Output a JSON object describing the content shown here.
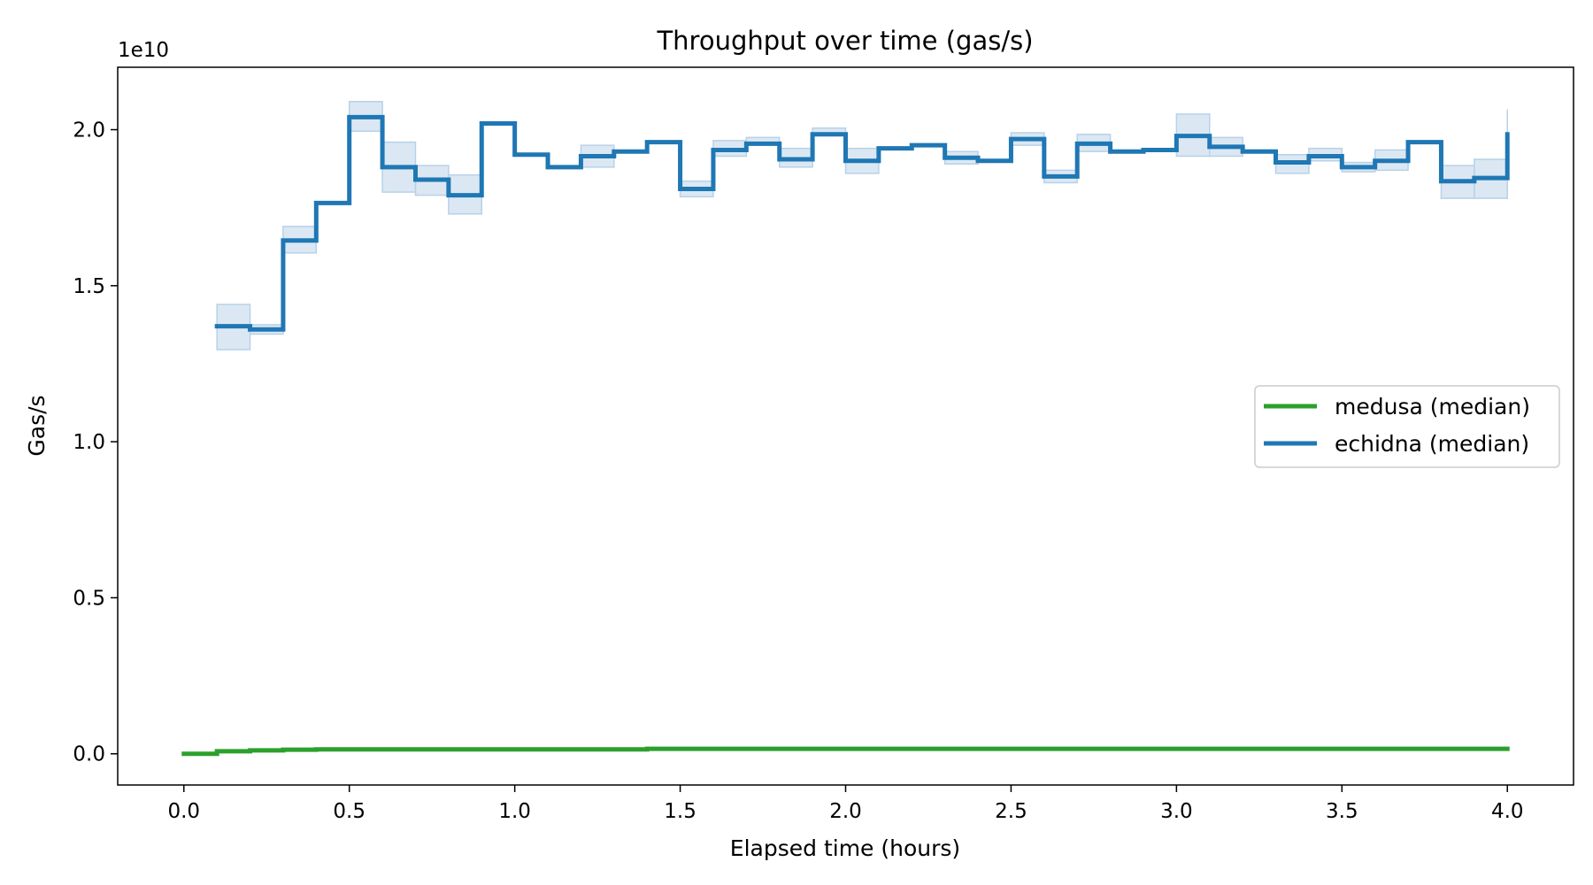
{
  "chart_data": {
    "type": "line",
    "title": "Throughput over time (gas/s)",
    "xlabel": "Elapsed time (hours)",
    "ylabel": "Gas/s",
    "y_offset_label": "1e10",
    "y_scale": 10000000000,
    "xlim": [
      -0.2,
      4.2
    ],
    "ylim": [
      -0.1,
      2.2
    ],
    "x_ticks": [
      0.0,
      0.5,
      1.0,
      1.5,
      2.0,
      2.5,
      3.0,
      3.5,
      4.0
    ],
    "x_tick_labels": [
      "0.0",
      "0.5",
      "1.0",
      "1.5",
      "2.0",
      "2.5",
      "3.0",
      "3.5",
      "4.0"
    ],
    "y_ticks": [
      0.0,
      0.5,
      1.0,
      1.5,
      2.0
    ],
    "y_tick_labels": [
      "0.0",
      "0.5",
      "1.0",
      "1.5",
      "2.0"
    ],
    "grid": false,
    "legend_position": "center-right",
    "step": "post",
    "series": [
      {
        "name": "medusa (median)",
        "color": "#2ca02c",
        "x": [
          0.0,
          0.1,
          0.2,
          0.3,
          0.4,
          1.4,
          4.0
        ],
        "y": [
          0.0,
          0.008,
          0.011,
          0.013,
          0.014,
          0.016,
          0.016
        ]
      },
      {
        "name": "echidna (median)",
        "color": "#1f77b4",
        "band_color": "#b8d1e8",
        "x": [
          0.1,
          0.2,
          0.3,
          0.4,
          0.5,
          0.6,
          0.7,
          0.8,
          0.9,
          1.0,
          1.1,
          1.2,
          1.3,
          1.4,
          1.5,
          1.6,
          1.7,
          1.8,
          1.9,
          2.0,
          2.1,
          2.2,
          2.3,
          2.4,
          2.5,
          2.6,
          2.7,
          2.8,
          2.9,
          3.0,
          3.1,
          3.2,
          3.3,
          3.4,
          3.5,
          3.6,
          3.7,
          3.8,
          3.9,
          4.0
        ],
        "y": [
          1.37,
          1.36,
          1.645,
          1.765,
          2.04,
          1.88,
          1.84,
          1.79,
          2.02,
          1.92,
          1.88,
          1.915,
          1.93,
          1.96,
          1.81,
          1.935,
          1.955,
          1.905,
          1.985,
          1.9,
          1.94,
          1.95,
          1.91,
          1.9,
          1.97,
          1.85,
          1.955,
          1.93,
          1.935,
          1.98,
          1.945,
          1.93,
          1.895,
          1.915,
          1.88,
          1.9,
          1.96,
          1.835,
          1.845,
          1.985
        ],
        "y_low": [
          1.295,
          1.345,
          1.605,
          1.765,
          1.995,
          1.8,
          1.79,
          1.73,
          2.02,
          1.92,
          1.88,
          1.88,
          1.93,
          1.96,
          1.785,
          1.915,
          1.955,
          1.88,
          1.985,
          1.86,
          1.94,
          1.95,
          1.89,
          1.9,
          1.95,
          1.83,
          1.93,
          1.93,
          1.935,
          1.915,
          1.915,
          1.93,
          1.86,
          1.9,
          1.865,
          1.87,
          1.96,
          1.78,
          1.78,
          1.98
        ],
        "y_high": [
          1.44,
          1.375,
          1.69,
          1.765,
          2.09,
          1.96,
          1.885,
          1.855,
          2.02,
          1.92,
          1.88,
          1.95,
          1.93,
          1.96,
          1.835,
          1.965,
          1.975,
          1.94,
          2.005,
          1.94,
          1.94,
          1.955,
          1.93,
          1.9,
          1.99,
          1.87,
          1.985,
          1.93,
          1.935,
          2.05,
          1.975,
          1.935,
          1.92,
          1.94,
          1.895,
          1.935,
          1.96,
          1.885,
          1.905,
          2.065
        ]
      }
    ]
  }
}
